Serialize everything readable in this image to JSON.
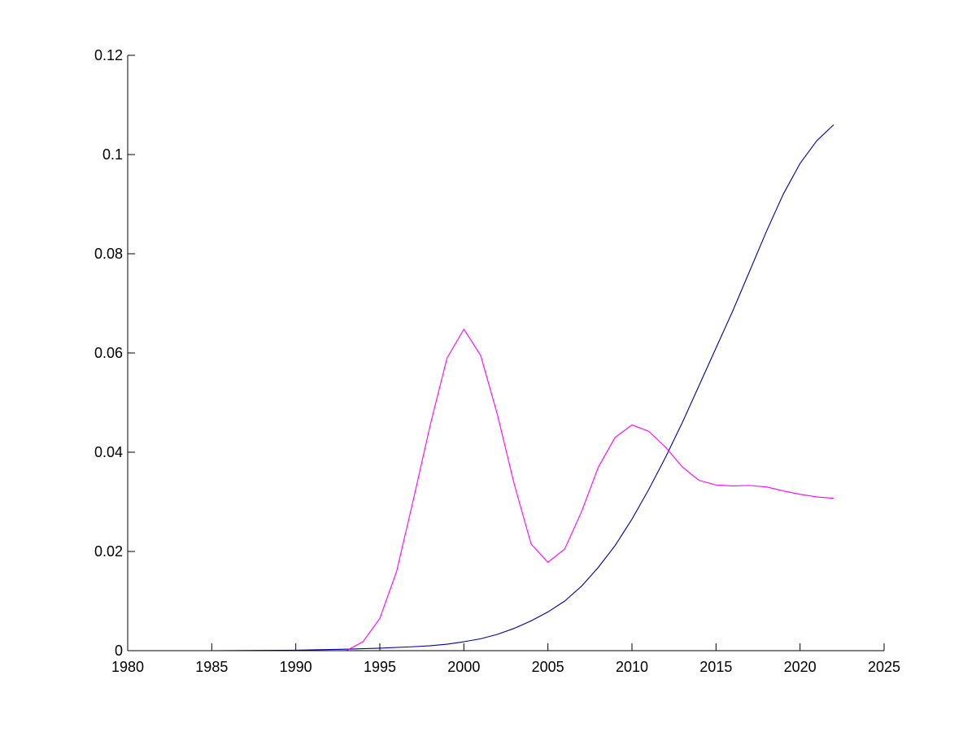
{
  "chart_data": {
    "type": "line",
    "title": "",
    "xlabel": "",
    "ylabel": "",
    "xlim": [
      1980,
      2025
    ],
    "ylim": [
      0,
      0.12
    ],
    "x_ticks": [
      1980,
      1985,
      1990,
      1995,
      2000,
      2005,
      2010,
      2015,
      2020,
      2025
    ],
    "x_tick_labels": [
      "1980",
      "1985",
      "1990",
      "1995",
      "2000",
      "2005",
      "2010",
      "2015",
      "2020",
      "2025"
    ],
    "y_ticks": [
      0,
      0.02,
      0.04,
      0.06,
      0.08,
      0.1,
      0.12
    ],
    "y_tick_labels": [
      "0",
      "0.02",
      "0.04",
      "0.06",
      "0.08",
      "0.1",
      "0.12"
    ],
    "grid": false,
    "legend": "none",
    "series": [
      {
        "color": "#0000a0",
        "x": [
          1980,
          1985,
          1990,
          1993,
          1995,
          1997,
          1998,
          1999,
          2000,
          2001,
          2002,
          2003,
          2004,
          2005,
          2006,
          2007,
          2008,
          2009,
          2010,
          2011,
          2012,
          2013,
          2014,
          2015,
          2016,
          2017,
          2018,
          2019,
          2020,
          2021,
          2022
        ],
        "y": [
          0,
          0,
          0.0001,
          0.0003,
          0.0005,
          0.0008,
          0.001,
          0.0013,
          0.0018,
          0.0024,
          0.0033,
          0.0045,
          0.006,
          0.0078,
          0.01,
          0.013,
          0.0168,
          0.0212,
          0.0265,
          0.0325,
          0.039,
          0.046,
          0.0535,
          0.061,
          0.0685,
          0.0765,
          0.0845,
          0.092,
          0.0982,
          0.1028,
          0.106
        ]
      },
      {
        "color": "#ff00ff",
        "x": [
          1980,
          1985,
          1990,
          1993,
          1994,
          1995,
          1996,
          1997,
          1998,
          1999,
          2000,
          2001,
          2002,
          2003,
          2004,
          2005,
          2006,
          2007,
          2008,
          2009,
          2010,
          2011,
          2012,
          2013,
          2014,
          2015,
          2016,
          2017,
          2018,
          2019,
          2020,
          2021,
          2022
        ],
        "y": [
          0,
          0,
          0,
          0,
          0.0018,
          0.0065,
          0.016,
          0.0305,
          0.0455,
          0.059,
          0.0648,
          0.0595,
          0.0475,
          0.0335,
          0.0215,
          0.0178,
          0.0205,
          0.028,
          0.037,
          0.043,
          0.0455,
          0.0442,
          0.041,
          0.037,
          0.0343,
          0.0334,
          0.0332,
          0.0333,
          0.033,
          0.0322,
          0.0315,
          0.031,
          0.0307
        ]
      }
    ]
  }
}
